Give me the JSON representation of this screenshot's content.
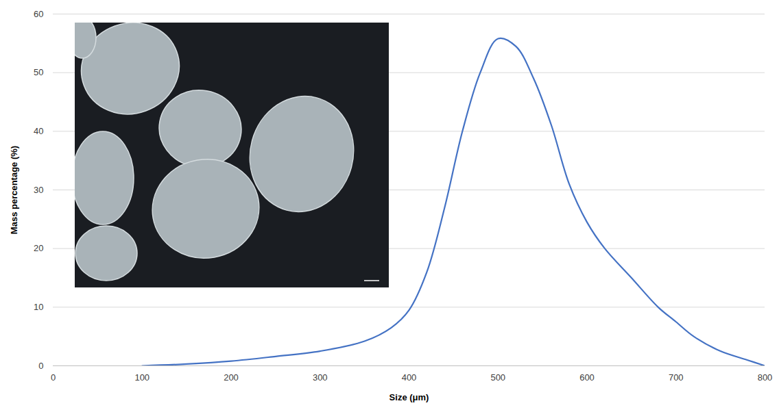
{
  "chart_data": {
    "type": "line",
    "x_label": "Size (μm)",
    "y_label": "Mass percentage (%)",
    "x": [
      100,
      150,
      200,
      250,
      300,
      350,
      380,
      400,
      420,
      440,
      460,
      480,
      500,
      520,
      540,
      560,
      580,
      600,
      620,
      650,
      680,
      700,
      720,
      750,
      780,
      800
    ],
    "values": [
      0,
      0.3,
      0.8,
      1.6,
      2.5,
      4.2,
      6.5,
      9.5,
      16,
      27,
      40,
      50,
      55.8,
      54.5,
      49,
      41,
      31,
      24.5,
      20,
      15,
      10,
      7.5,
      5,
      2.5,
      1,
      0
    ],
    "color": "#4472c4",
    "xlim": [
      0,
      800
    ],
    "xticks": [
      0,
      100,
      200,
      300,
      400,
      500,
      600,
      700,
      800
    ],
    "ylim": [
      0,
      60
    ],
    "yticks": [
      0,
      10,
      20,
      30,
      40,
      50,
      60
    ],
    "grid": true
  }
}
